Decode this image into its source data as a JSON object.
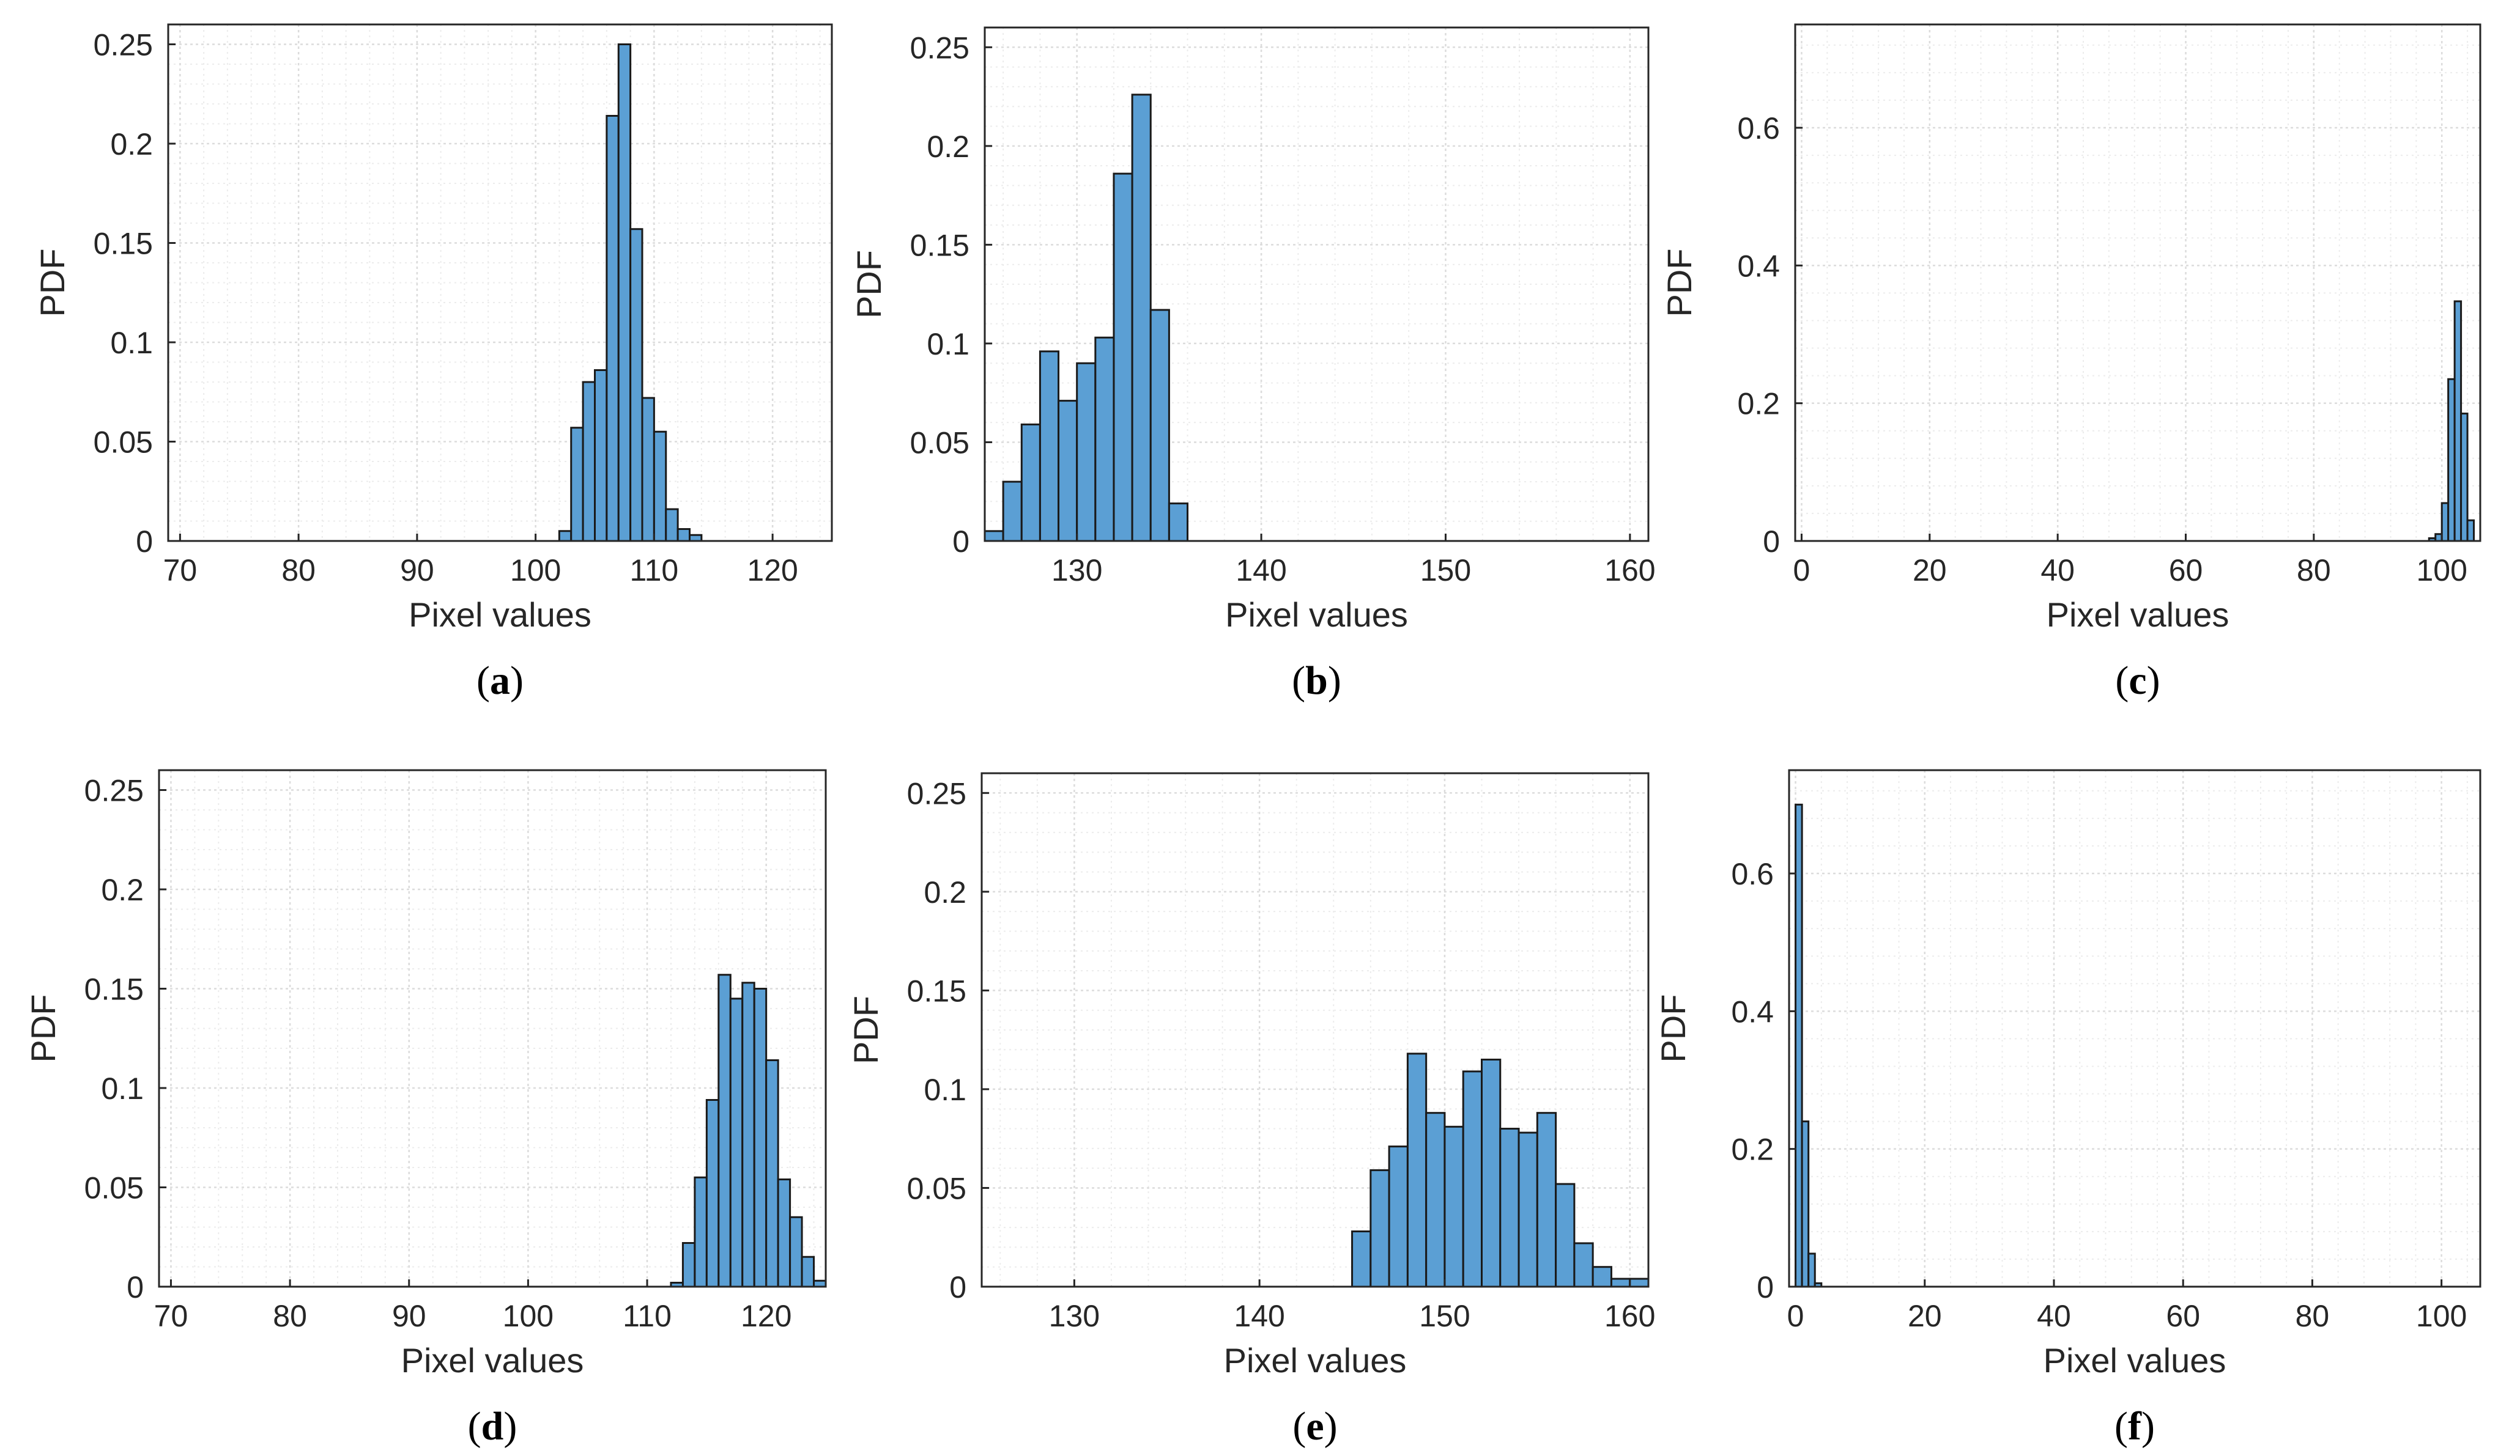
{
  "figure": {
    "bar_color": "#5b9fd4",
    "edge_color": "#1a1a1a",
    "grid_major_color": "#dcdcdc",
    "grid_minor_color": "#ececec",
    "axes_color": "#262626"
  },
  "chart_data": [
    {
      "panel": "a",
      "caption_open": "(",
      "caption_letter": "a",
      "caption_close": ")",
      "type": "bar",
      "xlabel": "Pixel values",
      "ylabel": "PDF",
      "xlim": [
        69,
        125
      ],
      "ylim": [
        0,
        0.26
      ],
      "xticks": [
        70,
        80,
        90,
        100,
        110,
        120
      ],
      "xtick_labels": [
        "70",
        "80",
        "90",
        "100",
        "110",
        "120"
      ],
      "yticks": [
        0,
        0.05,
        0.1,
        0.15,
        0.2,
        0.25
      ],
      "ytick_labels": [
        "0",
        "0.05",
        "0.1",
        "0.15",
        "0.2",
        "0.25"
      ],
      "minor_x_step": 2,
      "minor_y_step": 0.01,
      "bin_width": 1,
      "x": [
        102.5,
        103.5,
        104.5,
        105.5,
        106.5,
        107.5,
        108.5,
        109.5,
        110.5,
        111.5,
        112.5,
        113.5
      ],
      "values": [
        0.005,
        0.057,
        0.08,
        0.086,
        0.214,
        0.25,
        0.157,
        0.072,
        0.055,
        0.016,
        0.006,
        0.003
      ]
    },
    {
      "panel": "b",
      "caption_open": "(",
      "caption_letter": "b",
      "caption_close": ")",
      "type": "bar",
      "xlabel": "Pixel values",
      "ylabel": "PDF",
      "xlim": [
        125,
        161
      ],
      "ylim": [
        0,
        0.26
      ],
      "xticks": [
        130,
        140,
        150,
        160
      ],
      "xtick_labels": [
        "130",
        "140",
        "150",
        "160"
      ],
      "yticks": [
        0,
        0.05,
        0.1,
        0.15,
        0.2,
        0.25
      ],
      "ytick_labels": [
        "0",
        "0.05",
        "0.1",
        "0.15",
        "0.2",
        "0.25"
      ],
      "minor_x_step": 2,
      "minor_y_step": 0.01,
      "bin_width": 1,
      "x": [
        125.5,
        126.5,
        127.5,
        128.5,
        129.5,
        130.5,
        131.5,
        132.5,
        133.5,
        134.5,
        135.5
      ],
      "values": [
        0.005,
        0.03,
        0.059,
        0.096,
        0.071,
        0.09,
        0.103,
        0.186,
        0.226,
        0.117,
        0.019
      ]
    },
    {
      "panel": "c",
      "caption_open": "(",
      "caption_letter": "c",
      "caption_close": ")",
      "type": "bar",
      "xlabel": "Pixel values",
      "ylabel": "PDF",
      "xlim": [
        -1,
        106
      ],
      "ylim": [
        0,
        0.75
      ],
      "xticks": [
        0,
        20,
        40,
        60,
        80,
        100
      ],
      "xtick_labels": [
        "0",
        "20",
        "40",
        "60",
        "80",
        "100"
      ],
      "yticks": [
        0,
        0.2,
        0.4,
        0.6
      ],
      "ytick_labels": [
        "0",
        "0.2",
        "0.4",
        "0.6"
      ],
      "minor_x_step": 4,
      "minor_y_step": 0.04,
      "bin_width": 1,
      "x": [
        98.5,
        99.5,
        100.5,
        101.5,
        102.5,
        103.5,
        104.5
      ],
      "values": [
        0.004,
        0.01,
        0.055,
        0.235,
        0.348,
        0.185,
        0.03
      ]
    },
    {
      "panel": "d",
      "caption_open": "(",
      "caption_letter": "d",
      "caption_close": ")",
      "type": "bar",
      "xlabel": "Pixel values",
      "ylabel": "PDF",
      "xlim": [
        69,
        125
      ],
      "ylim": [
        0,
        0.26
      ],
      "xticks": [
        70,
        80,
        90,
        100,
        110,
        120
      ],
      "xtick_labels": [
        "70",
        "80",
        "90",
        "100",
        "110",
        "120"
      ],
      "yticks": [
        0,
        0.05,
        0.1,
        0.15,
        0.2,
        0.25
      ],
      "ytick_labels": [
        "0",
        "0.05",
        "0.1",
        "0.15",
        "0.2",
        "0.25"
      ],
      "minor_x_step": 2,
      "minor_y_step": 0.01,
      "bin_width": 1,
      "x": [
        112.5,
        113.5,
        114.5,
        115.5,
        116.5,
        117.5,
        118.5,
        119.5,
        120.5,
        121.5,
        122.5,
        123.5,
        124.5
      ],
      "values": [
        0.002,
        0.022,
        0.055,
        0.094,
        0.157,
        0.145,
        0.153,
        0.15,
        0.114,
        0.054,
        0.035,
        0.015,
        0.003
      ]
    },
    {
      "panel": "e",
      "caption_open": "(",
      "caption_letter": "e",
      "caption_close": ")",
      "type": "bar",
      "xlabel": "Pixel values",
      "ylabel": "PDF",
      "xlim": [
        125,
        161
      ],
      "ylim": [
        0,
        0.26
      ],
      "xticks": [
        130,
        140,
        150,
        160
      ],
      "xtick_labels": [
        "130",
        "140",
        "150",
        "160"
      ],
      "yticks": [
        0,
        0.05,
        0.1,
        0.15,
        0.2,
        0.25
      ],
      "ytick_labels": [
        "0",
        "0.05",
        "0.1",
        "0.15",
        "0.2",
        "0.25"
      ],
      "minor_x_step": 2,
      "minor_y_step": 0.01,
      "bin_width": 1,
      "x": [
        145.5,
        146.5,
        147.5,
        148.5,
        149.5,
        150.5,
        151.5,
        152.5,
        153.5,
        154.5,
        155.5,
        156.5,
        157.5,
        158.5,
        159.5,
        160.5
      ],
      "values": [
        0.028,
        0.059,
        0.071,
        0.118,
        0.088,
        0.081,
        0.109,
        0.115,
        0.08,
        0.078,
        0.088,
        0.052,
        0.022,
        0.01,
        0.004,
        0.004
      ]
    },
    {
      "panel": "f",
      "caption_open": "(",
      "caption_letter": "f",
      "caption_close": ")",
      "type": "bar",
      "xlabel": "Pixel values",
      "ylabel": "PDF",
      "xlim": [
        -1,
        106
      ],
      "ylim": [
        0,
        0.75
      ],
      "xticks": [
        0,
        20,
        40,
        60,
        80,
        100
      ],
      "xtick_labels": [
        "0",
        "20",
        "40",
        "60",
        "80",
        "100"
      ],
      "yticks": [
        0,
        0.2,
        0.4,
        0.6
      ],
      "ytick_labels": [
        "0",
        "0.2",
        "0.4",
        "0.6"
      ],
      "minor_x_step": 4,
      "minor_y_step": 0.04,
      "bin_width": 1,
      "x": [
        0.5,
        1.5,
        2.5,
        3.5
      ],
      "values": [
        0.7,
        0.24,
        0.048,
        0.005
      ]
    }
  ]
}
